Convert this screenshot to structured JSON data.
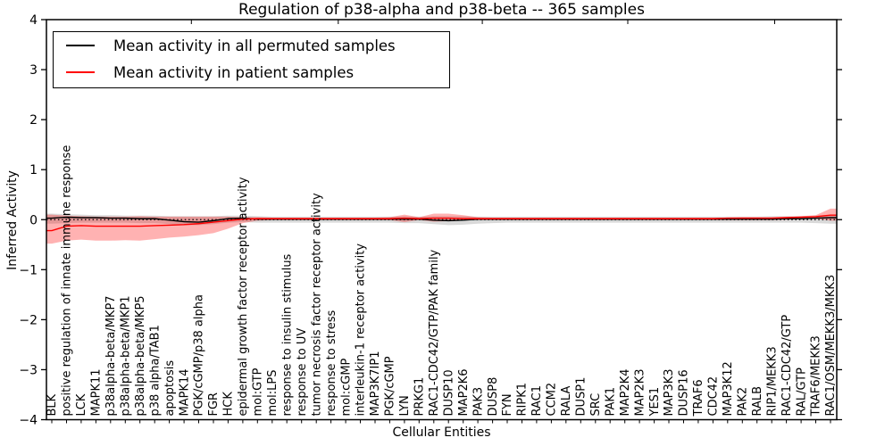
{
  "chart_data": {
    "type": "line",
    "title": "Regulation of p38-alpha and p38-beta -- 365 samples",
    "xlabel": "Cellular Entities",
    "ylabel": "Inferred Activity",
    "ylim": [
      -4,
      4
    ],
    "yticks": [
      -4,
      -3,
      -2,
      -1,
      0,
      1,
      2,
      3,
      4
    ],
    "grid": false,
    "legend_position": "upper left",
    "zero_line": {
      "y": 0,
      "style": "dotted",
      "color": "#000000"
    },
    "categories": [
      "BLK",
      "positive regulation of innate immune response",
      "LCK",
      "MAPK11",
      "p38alpha-beta/MKP7",
      "p38alpha-beta/MKP1",
      "p38alpha-beta/MKP5",
      "p38 alpha/TAB1",
      "apoptosis",
      "MAPK14",
      "PGK/cGMP/p38 alpha",
      "FGR",
      "HCK",
      "epidermal growth factor receptor activity",
      "mol:GTP",
      "mol:LPS",
      "response to insulin stimulus",
      "response to UV",
      "tumor necrosis factor receptor activity",
      "response to stress",
      "mol:cGMP",
      "interleukin-1 receptor activity",
      "MAP3K7IP1",
      "PGK/cGMP",
      "LYN",
      "PRKG1",
      "RAC1-CDC42/GTP/PAK family",
      "DUSP10",
      "MAP2K6",
      "PAK3",
      "DUSP8",
      "FYN",
      "RIPK1",
      "RAC1",
      "CCM2",
      "RALA",
      "DUSP1",
      "SRC",
      "PAK1",
      "MAP2K4",
      "MAP2K3",
      "YES1",
      "MAP3K3",
      "DUSP16",
      "TRAF6",
      "CDC42",
      "MAP3K12",
      "PAK2",
      "RALB",
      "RIP1/MEKK3",
      "RAC1-CDC42/GTP",
      "RAL/GTP",
      "TRAF6/MEKK3",
      "RAC1/OSM/MEKK3/MKK3"
    ],
    "series": [
      {
        "name": "Mean activity in all permuted samples",
        "color": "#000000",
        "values": [
          0.03,
          0.05,
          0.04,
          0.04,
          0.03,
          0.03,
          0.02,
          0.02,
          -0.01,
          -0.04,
          -0.05,
          -0.02,
          0.02,
          0.03,
          0.01,
          0.01,
          0.01,
          0.01,
          0.01,
          0.01,
          0.01,
          0.01,
          0.01,
          0.01,
          0.01,
          0.01,
          -0.01,
          -0.02,
          -0.01,
          0.01,
          0.01,
          0.01,
          0.01,
          0.01,
          0.01,
          0.01,
          0.01,
          0.01,
          0.01,
          0.01,
          0.01,
          0.01,
          0.01,
          0.01,
          0.01,
          0.01,
          0.01,
          0.01,
          0.01,
          0.01,
          0.02,
          0.02,
          0.03,
          0.04
        ]
      },
      {
        "name": "Mean activity in patient samples",
        "color": "#ff0000",
        "values": [
          -0.22,
          -0.13,
          -0.12,
          -0.13,
          -0.13,
          -0.13,
          -0.13,
          -0.12,
          -0.11,
          -0.1,
          -0.08,
          -0.05,
          -0.02,
          0.01,
          0.02,
          0.02,
          0.02,
          0.02,
          0.02,
          0.02,
          0.02,
          0.02,
          0.02,
          0.02,
          0.03,
          0.02,
          0.03,
          0.03,
          0.02,
          0.02,
          0.02,
          0.02,
          0.02,
          0.02,
          0.02,
          0.02,
          0.02,
          0.02,
          0.02,
          0.02,
          0.02,
          0.02,
          0.02,
          0.02,
          0.02,
          0.02,
          0.03,
          0.03,
          0.03,
          0.03,
          0.04,
          0.05,
          0.06,
          0.09
        ]
      }
    ],
    "bands": [
      {
        "name": "permuted samples std band",
        "color": "#000000",
        "opacity": 0.15,
        "upper": [
          0.12,
          0.11,
          0.1,
          0.09,
          0.09,
          0.08,
          0.08,
          0.08,
          0.07,
          0.07,
          0.07,
          0.07,
          0.08,
          0.08,
          0.07,
          0.06,
          0.06,
          0.06,
          0.06,
          0.06,
          0.06,
          0.06,
          0.06,
          0.06,
          0.07,
          0.06,
          0.07,
          0.07,
          0.07,
          0.06,
          0.06,
          0.06,
          0.06,
          0.06,
          0.06,
          0.06,
          0.06,
          0.06,
          0.06,
          0.06,
          0.06,
          0.06,
          0.06,
          0.06,
          0.06,
          0.06,
          0.06,
          0.06,
          0.06,
          0.07,
          0.07,
          0.07,
          0.08,
          0.1
        ],
        "lower": [
          -0.08,
          -0.07,
          -0.06,
          -0.06,
          -0.06,
          -0.06,
          -0.07,
          -0.07,
          -0.09,
          -0.11,
          -0.11,
          -0.09,
          -0.06,
          -0.05,
          -0.06,
          -0.06,
          -0.06,
          -0.06,
          -0.06,
          -0.06,
          -0.06,
          -0.06,
          -0.06,
          -0.06,
          -0.07,
          -0.07,
          -0.09,
          -0.11,
          -0.1,
          -0.08,
          -0.07,
          -0.06,
          -0.06,
          -0.06,
          -0.06,
          -0.06,
          -0.06,
          -0.06,
          -0.06,
          -0.06,
          -0.06,
          -0.06,
          -0.06,
          -0.06,
          -0.06,
          -0.06,
          -0.06,
          -0.06,
          -0.06,
          -0.06,
          -0.06,
          -0.06,
          -0.07,
          -0.08
        ]
      },
      {
        "name": "patient samples std band",
        "color": "#ff0000",
        "opacity": 0.3,
        "upper": [
          0.1,
          0.08,
          0.07,
          0.06,
          0.06,
          0.06,
          0.07,
          0.06,
          0.06,
          0.06,
          0.06,
          0.06,
          0.06,
          0.05,
          0.05,
          0.04,
          0.04,
          0.04,
          0.04,
          0.04,
          0.04,
          0.04,
          0.04,
          0.05,
          0.1,
          0.05,
          0.12,
          0.12,
          0.09,
          0.05,
          0.04,
          0.04,
          0.04,
          0.04,
          0.04,
          0.04,
          0.04,
          0.04,
          0.04,
          0.04,
          0.04,
          0.04,
          0.04,
          0.04,
          0.04,
          0.04,
          0.04,
          0.05,
          0.05,
          0.05,
          0.06,
          0.07,
          0.09,
          0.22
        ],
        "lower": [
          -0.48,
          -0.42,
          -0.4,
          -0.42,
          -0.42,
          -0.41,
          -0.42,
          -0.39,
          -0.36,
          -0.34,
          -0.31,
          -0.27,
          -0.18,
          -0.07,
          -0.02,
          -0.01,
          -0.01,
          -0.01,
          -0.01,
          -0.01,
          -0.01,
          -0.01,
          -0.01,
          -0.01,
          -0.05,
          -0.01,
          -0.04,
          -0.03,
          -0.02,
          -0.01,
          -0.01,
          -0.01,
          -0.01,
          -0.01,
          -0.01,
          -0.01,
          -0.01,
          -0.01,
          -0.01,
          -0.01,
          -0.01,
          -0.01,
          -0.01,
          -0.01,
          -0.01,
          -0.01,
          -0.01,
          -0.01,
          -0.01,
          -0.01,
          0.0,
          0.01,
          0.02,
          -0.02
        ]
      }
    ]
  }
}
